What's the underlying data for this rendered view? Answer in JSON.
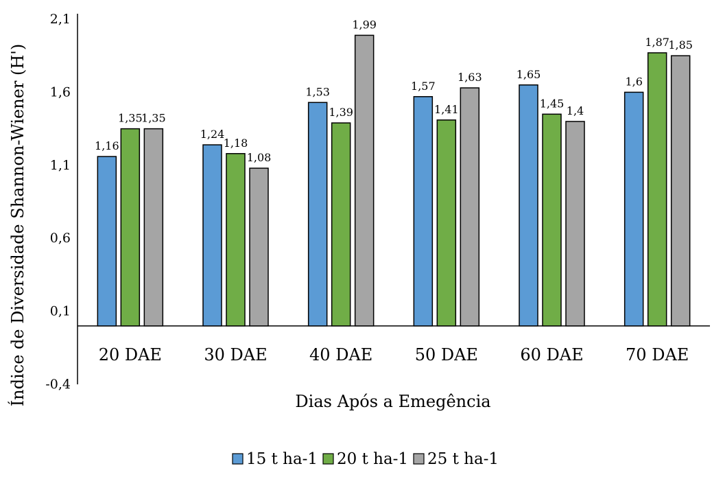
{
  "chart_data": {
    "type": "bar",
    "categories": [
      "20 DAE",
      "30 DAE",
      "40 DAE",
      "50 DAE",
      "60 DAE",
      "70 DAE"
    ],
    "series": [
      {
        "name": "15 t ha-1",
        "color": "#5b9bd5",
        "values": [
          1.16,
          1.24,
          1.53,
          1.57,
          1.65,
          1.6
        ],
        "labels": [
          "1,16",
          "1,24",
          "1,53",
          "1,57",
          "1,65",
          "1,6"
        ]
      },
      {
        "name": "20 t ha-1",
        "color": "#70ad47",
        "values": [
          1.35,
          1.18,
          1.39,
          1.41,
          1.45,
          1.87
        ],
        "labels": [
          "1,35",
          "1,18",
          "1,39",
          "1,41",
          "1,45",
          "1,87"
        ]
      },
      {
        "name": "25 t ha-1",
        "color": "#a5a5a5",
        "values": [
          1.35,
          1.08,
          1.99,
          1.63,
          1.4,
          1.85
        ],
        "labels": [
          "1,35",
          "1,08",
          "1,99",
          "1,63",
          "1,4",
          "1,85"
        ]
      }
    ],
    "xlabel": "Dias Após a Emegência",
    "ylabel": "Índice de Diversidade Shannon-Wiener (H')",
    "ylim": [
      -0.4,
      2.1
    ],
    "yticks": [
      -0.4,
      0.1,
      0.6,
      1.1,
      1.6,
      2.1
    ],
    "ytick_labels": [
      "-0,4",
      "0,1",
      "0,6",
      "1,1",
      "1,6",
      "2,1"
    ],
    "baseline": 0,
    "grid": false,
    "legend_position": "bottom"
  }
}
